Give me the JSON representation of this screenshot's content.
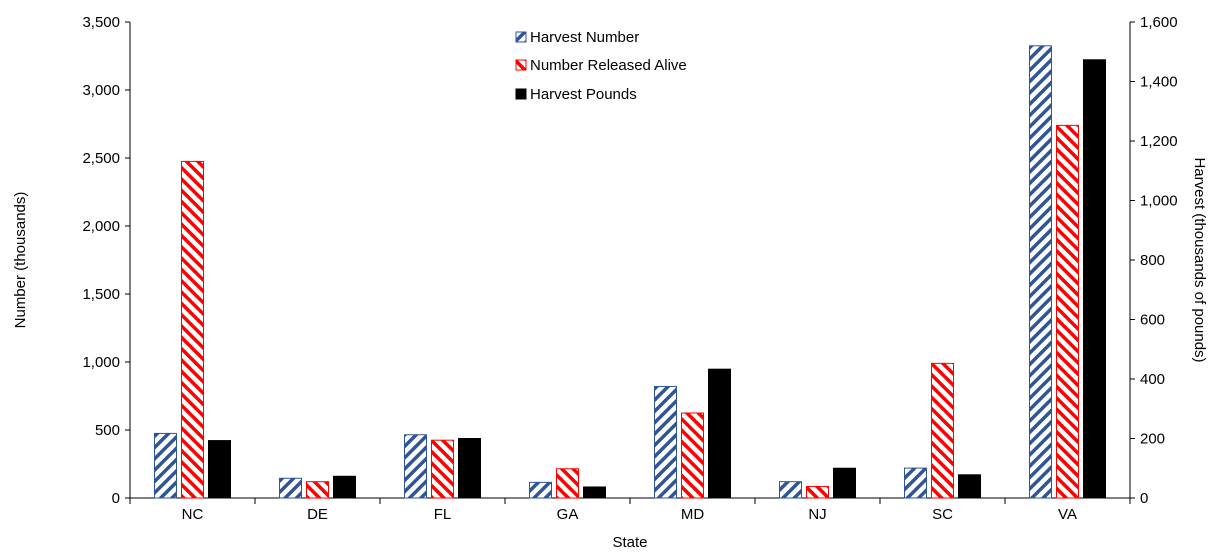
{
  "chart_data": {
    "type": "bar",
    "categories": [
      "NC",
      "DE",
      "FL",
      "GA",
      "MD",
      "NJ",
      "SC",
      "VA"
    ],
    "xlabel": "State",
    "ylabel": "Number (thousands)",
    "y2label": "Harvest (thousands of pounds)",
    "ylim": [
      0,
      3500
    ],
    "y2lim": [
      0,
      1600
    ],
    "yticks": [
      "0",
      "500",
      "1,000",
      "1,500",
      "2,000",
      "2,500",
      "3,000",
      "3,500"
    ],
    "y2ticks": [
      "0",
      "200",
      "400",
      "600",
      "800",
      "1,000",
      "1,200",
      "1,400",
      "1,600"
    ],
    "legend_position": "top-center",
    "grid": false,
    "series": [
      {
        "name": "Harvest Number",
        "axis": "left",
        "pattern": "hatch",
        "color": "#2F5597",
        "values": [
          475,
          145,
          465,
          115,
          820,
          120,
          220,
          3325
        ]
      },
      {
        "name": "Number Released Alive",
        "axis": "left",
        "pattern": "hatch",
        "color": "#FF0000",
        "values": [
          2475,
          120,
          425,
          215,
          625,
          85,
          990,
          2740
        ]
      },
      {
        "name": "Harvest Pounds",
        "axis": "right",
        "pattern": "solid",
        "color": "#000000",
        "values": [
          193,
          73,
          200,
          37,
          433,
          100,
          78,
          1473
        ]
      }
    ]
  }
}
